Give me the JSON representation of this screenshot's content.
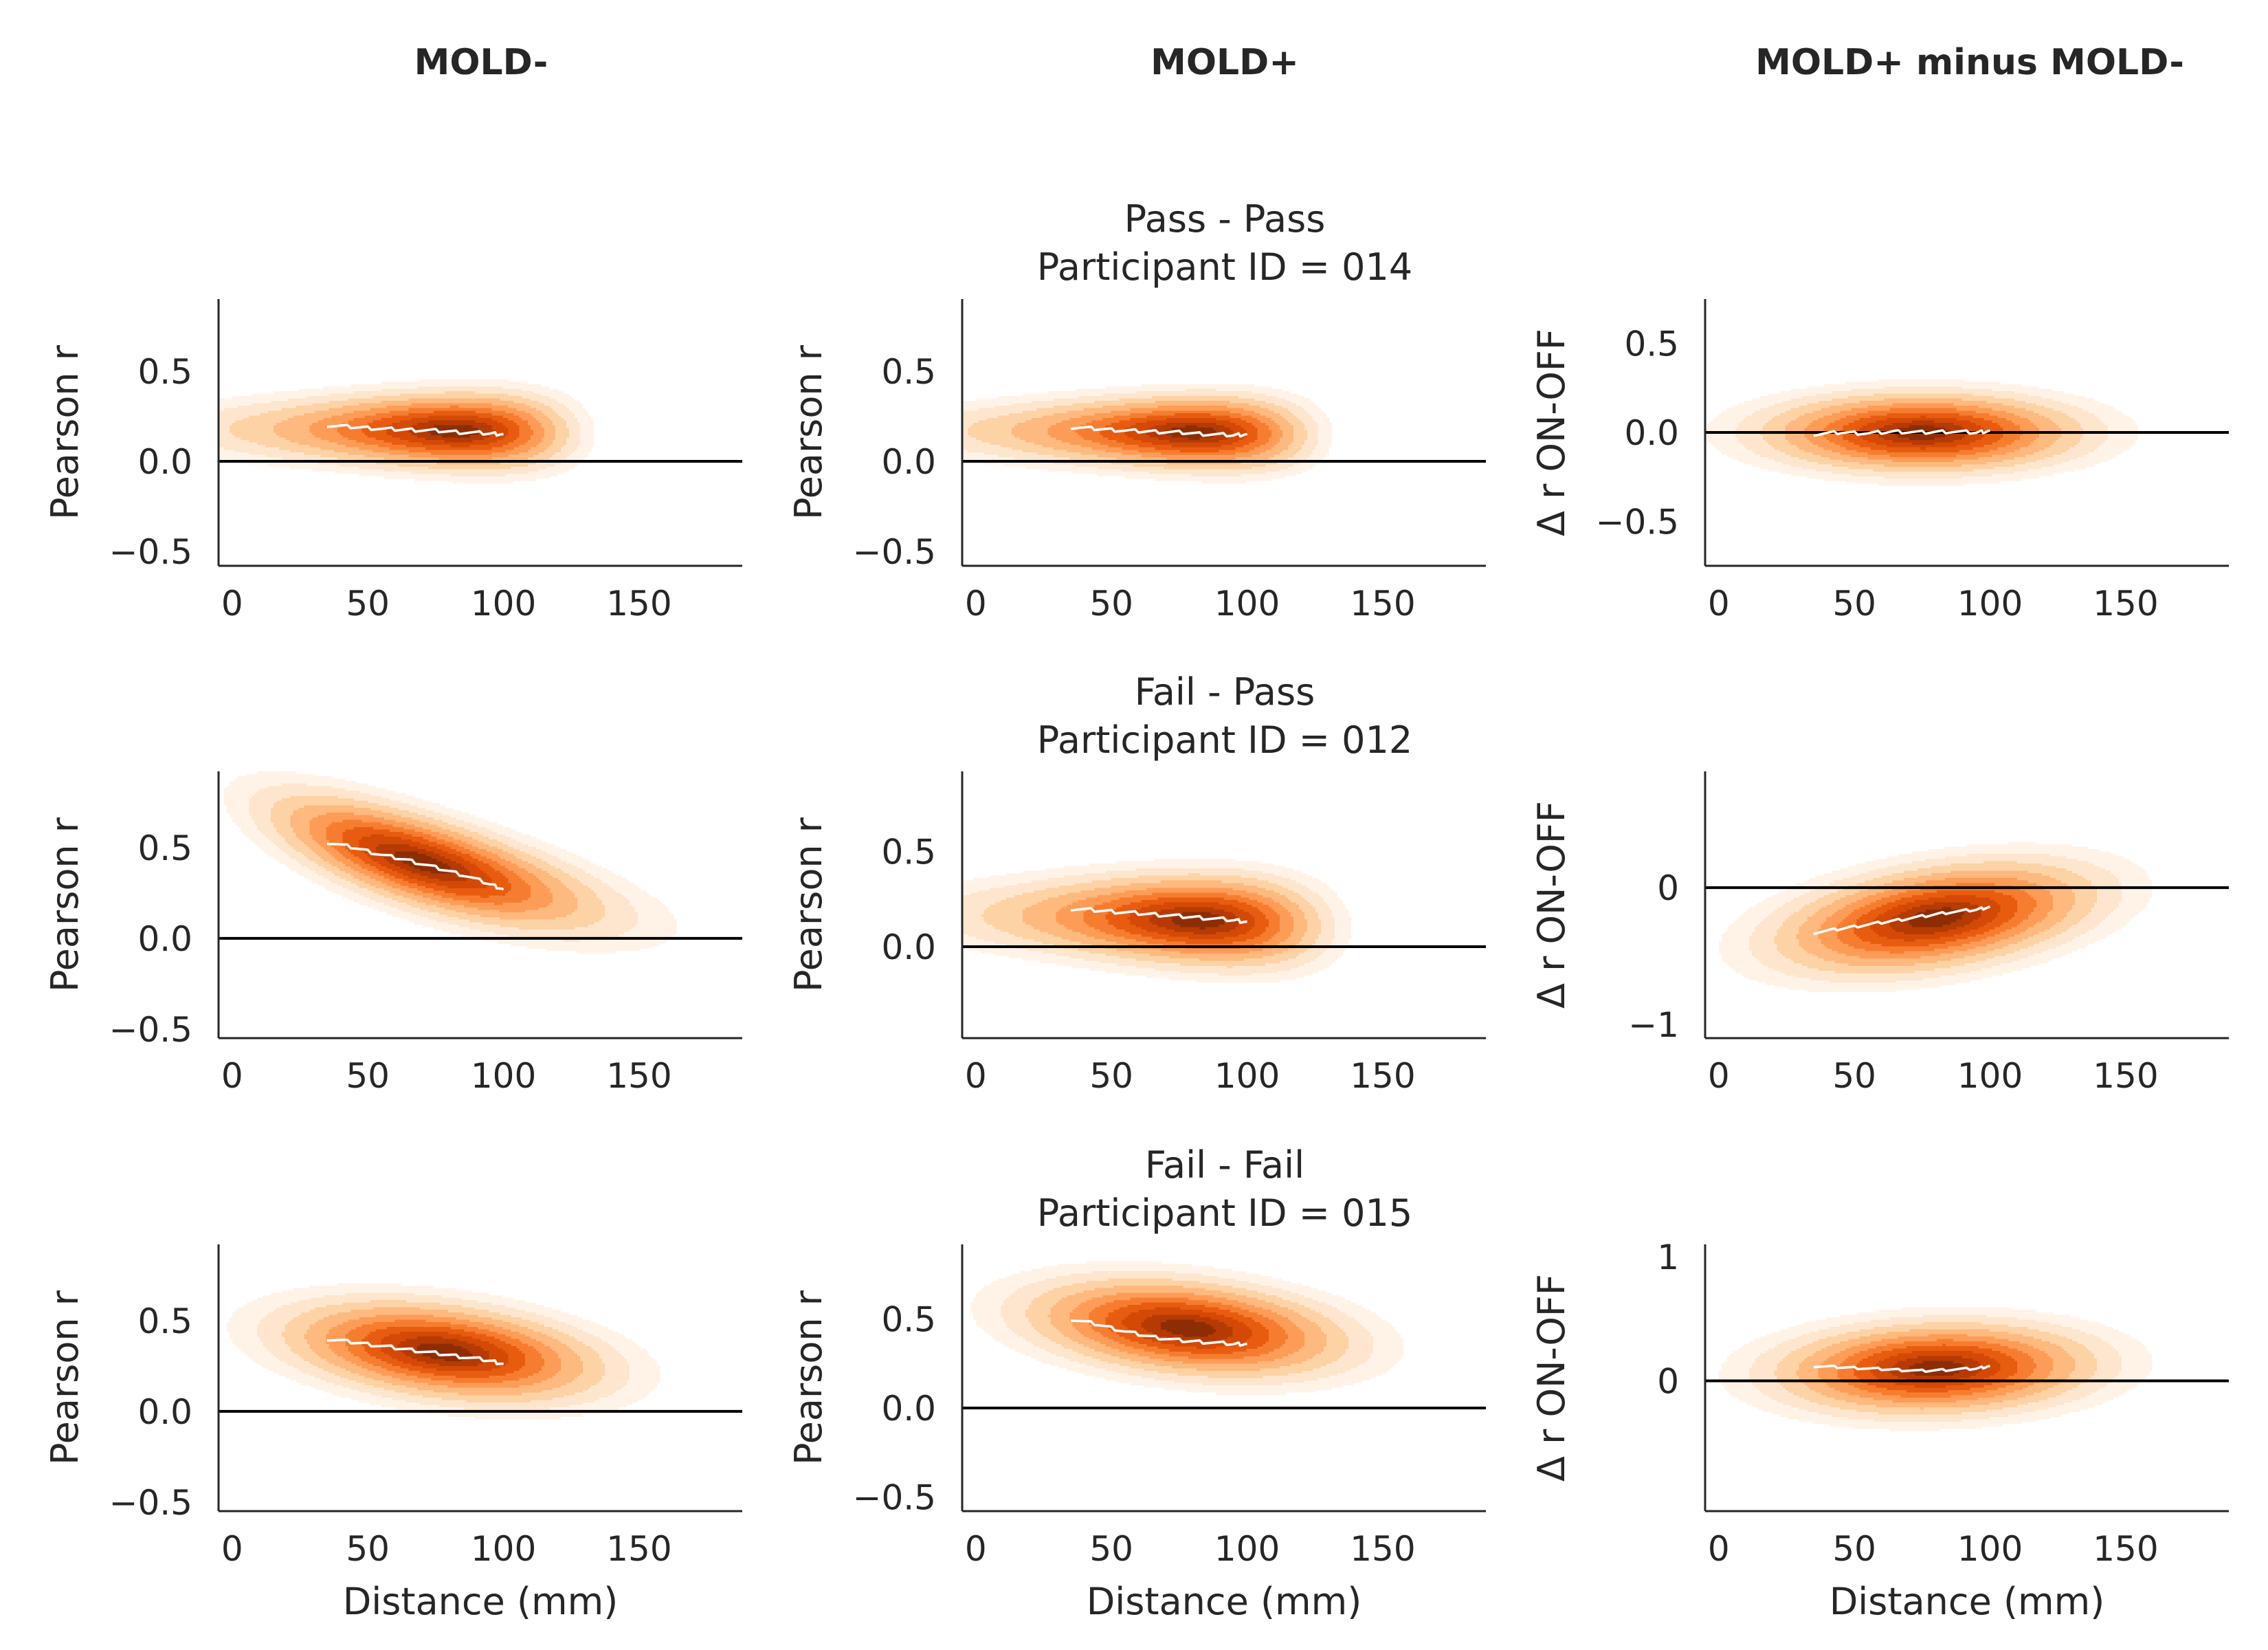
{
  "figure": {
    "column_titles": [
      "MOLD-",
      "MOLD+",
      "MOLD+ minus MOLD-"
    ],
    "row_titles": [
      {
        "line1": "Pass - Pass",
        "line2": "Participant ID = 014"
      },
      {
        "line1": "Fail - Pass",
        "line2": "Participant ID = 012"
      },
      {
        "line1": "Fail - Fail",
        "line2": "Participant ID = 015"
      }
    ]
  },
  "colors": {
    "density_levels": [
      "#fff3e8",
      "#fee6ce",
      "#fdd2a5",
      "#fdb97e",
      "#fd9c56",
      "#f67d2f",
      "#e85c10",
      "#d44905",
      "#b53a04",
      "#8e2d04"
    ],
    "trend_line": "#ffffff",
    "zero_line": "#000000",
    "axis": "#262626"
  },
  "chart_data": [
    {
      "type": "density",
      "row": 0,
      "col": 0,
      "xlabel": "",
      "ylabel": "Pearson r",
      "xlim": [
        -5,
        188
      ],
      "ylim": [
        -0.58,
        0.9
      ],
      "xticks": [
        0,
        50,
        100,
        150
      ],
      "yticks": [
        -0.5,
        0.0,
        0.5
      ],
      "ytick_labels": [
        "−0.5",
        "0.0",
        "0.5"
      ],
      "zero_line": 0,
      "density": {
        "cx": 82,
        "cy": 0.17,
        "sx": 30,
        "sy": 0.115,
        "rho": -0.05,
        "skew": -0.18,
        "skew_y": 0.05,
        "center_x": 75
      },
      "trend": {
        "x": [
          35,
          45,
          55,
          65,
          75,
          85,
          95,
          100
        ],
        "y": [
          0.2,
          0.19,
          0.18,
          0.175,
          0.17,
          0.16,
          0.155,
          0.15
        ]
      }
    },
    {
      "type": "density",
      "row": 0,
      "col": 1,
      "xlabel": "",
      "ylabel": "Pearson r",
      "xlim": [
        -5,
        188
      ],
      "ylim": [
        -0.58,
        0.9
      ],
      "xticks": [
        0,
        50,
        100,
        150
      ],
      "yticks": [
        -0.5,
        0.0,
        0.5
      ],
      "ytick_labels": [
        "−0.5",
        "0.0",
        "0.5"
      ],
      "zero_line": 0,
      "density": {
        "cx": 80,
        "cy": 0.16,
        "sx": 30,
        "sy": 0.11,
        "rho": -0.05,
        "skew": -0.18,
        "skew_y": 0.05,
        "center_x": 75
      },
      "trend": {
        "x": [
          35,
          45,
          55,
          65,
          75,
          85,
          95,
          100
        ],
        "y": [
          0.19,
          0.18,
          0.17,
          0.165,
          0.16,
          0.15,
          0.145,
          0.15
        ]
      }
    },
    {
      "type": "density",
      "row": 0,
      "col": 2,
      "xlabel": "",
      "ylabel": "Δ r ON-OFF",
      "xlim": [
        -5,
        188
      ],
      "ylim": [
        -0.75,
        0.75
      ],
      "xticks": [
        0,
        50,
        100,
        150
      ],
      "yticks": [
        -0.5,
        0.0,
        0.5
      ],
      "ytick_labels": [
        "−0.5",
        "0.0",
        "0.5"
      ],
      "zero_line": 0,
      "density": {
        "cx": 75,
        "cy": 0.0,
        "sx": 32,
        "sy": 0.12,
        "rho": 0.0,
        "skew": 0.0,
        "skew_y": 0.0,
        "center_x": 75
      },
      "trend": {
        "x": [
          35,
          45,
          55,
          65,
          75,
          85,
          95,
          100
        ],
        "y": [
          -0.01,
          0.0,
          -0.005,
          0.005,
          0.0,
          0.005,
          0.0,
          0.01
        ]
      }
    },
    {
      "type": "density",
      "row": 1,
      "col": 0,
      "xlabel": "",
      "ylabel": "Pearson r",
      "xlim": [
        -5,
        188
      ],
      "ylim": [
        -0.55,
        0.92
      ],
      "xticks": [
        0,
        50,
        100,
        150
      ],
      "yticks": [
        -0.5,
        0.0,
        0.5
      ],
      "ytick_labels": [
        "−0.5",
        "0.0",
        "0.5"
      ],
      "zero_line": 0,
      "density": {
        "cx": 70,
        "cy": 0.42,
        "sx": 33,
        "sy": 0.2,
        "rho": -0.72,
        "skew": 0.05,
        "skew_y": 0.0,
        "center_x": 75
      },
      "trend": {
        "x": [
          35,
          45,
          55,
          65,
          75,
          85,
          95,
          100
        ],
        "y": [
          0.53,
          0.5,
          0.46,
          0.43,
          0.39,
          0.35,
          0.3,
          0.27
        ]
      }
    },
    {
      "type": "density",
      "row": 1,
      "col": 1,
      "xlabel": "",
      "ylabel": "Pearson r",
      "xlim": [
        -5,
        188
      ],
      "ylim": [
        -0.48,
        0.92
      ],
      "xticks": [
        0,
        50,
        100,
        150
      ],
      "yticks": [
        0.0,
        0.5
      ],
      "ytick_labels": [
        "0.0",
        "0.5"
      ],
      "zero_line": 0,
      "density": {
        "cx": 82,
        "cy": 0.14,
        "sx": 31,
        "sy": 0.13,
        "rho": -0.12,
        "skew": -0.15,
        "skew_y": 0.05,
        "center_x": 75
      },
      "trend": {
        "x": [
          35,
          45,
          55,
          65,
          75,
          85,
          95,
          100
        ],
        "y": [
          0.2,
          0.19,
          0.18,
          0.17,
          0.16,
          0.15,
          0.14,
          0.13
        ]
      }
    },
    {
      "type": "density",
      "row": 1,
      "col": 2,
      "xlabel": "",
      "ylabel": "Δ r ON-OFF",
      "xlim": [
        -5,
        188
      ],
      "ylim": [
        -1.1,
        0.85
      ],
      "xticks": [
        0,
        50,
        100,
        150
      ],
      "yticks": [
        -1,
        0
      ],
      "ytick_labels": [
        "−1",
        "0"
      ],
      "zero_line": 0,
      "density": {
        "cx": 80,
        "cy": -0.22,
        "sx": 32,
        "sy": 0.22,
        "rho": 0.4,
        "skew": 0.0,
        "skew_y": 0.0,
        "center_x": 75
      },
      "trend": {
        "x": [
          35,
          45,
          55,
          65,
          75,
          85,
          95,
          100
        ],
        "y": [
          -0.33,
          -0.3,
          -0.27,
          -0.24,
          -0.21,
          -0.18,
          -0.16,
          -0.14
        ]
      }
    },
    {
      "type": "density",
      "row": 2,
      "col": 0,
      "xlabel": "Distance (mm)",
      "ylabel": "Pearson r",
      "xlim": [
        -5,
        188
      ],
      "ylim": [
        -0.55,
        0.92
      ],
      "xticks": [
        0,
        50,
        100,
        150
      ],
      "yticks": [
        -0.5,
        0.0,
        0.5
      ],
      "ytick_labels": [
        "−0.5",
        "0.0",
        "0.5"
      ],
      "zero_line": 0,
      "density": {
        "cx": 78,
        "cy": 0.33,
        "sx": 32,
        "sy": 0.15,
        "rho": -0.35,
        "skew": 0.0,
        "skew_y": 0.0,
        "center_x": 75
      },
      "trend": {
        "x": [
          35,
          45,
          55,
          65,
          75,
          85,
          95,
          100
        ],
        "y": [
          0.4,
          0.38,
          0.36,
          0.34,
          0.32,
          0.3,
          0.28,
          0.26
        ]
      }
    },
    {
      "type": "density",
      "row": 2,
      "col": 1,
      "xlabel": "Distance (mm)",
      "ylabel": "Pearson r",
      "xlim": [
        -5,
        188
      ],
      "ylim": [
        -0.58,
        0.92
      ],
      "xticks": [
        0,
        50,
        100,
        150
      ],
      "yticks": [
        -0.5,
        0.0,
        0.5
      ],
      "ytick_labels": [
        "−0.5",
        "0.0",
        "0.5"
      ],
      "zero_line": 0,
      "density": {
        "cx": 78,
        "cy": 0.45,
        "sx": 32,
        "sy": 0.15,
        "rho": -0.3,
        "skew": 0.0,
        "skew_y": 0.0,
        "center_x": 75
      },
      "trend": {
        "x": [
          35,
          45,
          55,
          65,
          75,
          85,
          95,
          100
        ],
        "y": [
          0.5,
          0.47,
          0.43,
          0.4,
          0.38,
          0.37,
          0.36,
          0.36
        ]
      }
    },
    {
      "type": "density",
      "row": 2,
      "col": 2,
      "xlabel": "Distance (mm)",
      "ylabel": "Δ r ON-OFF",
      "xlim": [
        -5,
        188
      ],
      "ylim": [
        -1.05,
        1.1
      ],
      "xticks": [
        0,
        50,
        100,
        150
      ],
      "yticks": [
        0,
        1
      ],
      "ytick_labels": [
        "0",
        "1"
      ],
      "zero_line": 0,
      "density": {
        "cx": 80,
        "cy": 0.1,
        "sx": 32,
        "sy": 0.2,
        "rho": 0.1,
        "skew": 0.0,
        "skew_y": 0.0,
        "center_x": 75
      },
      "trend": {
        "x": [
          35,
          45,
          55,
          65,
          75,
          85,
          95,
          100
        ],
        "y": [
          0.12,
          0.11,
          0.1,
          0.09,
          0.08,
          0.09,
          0.1,
          0.12
        ]
      }
    }
  ]
}
